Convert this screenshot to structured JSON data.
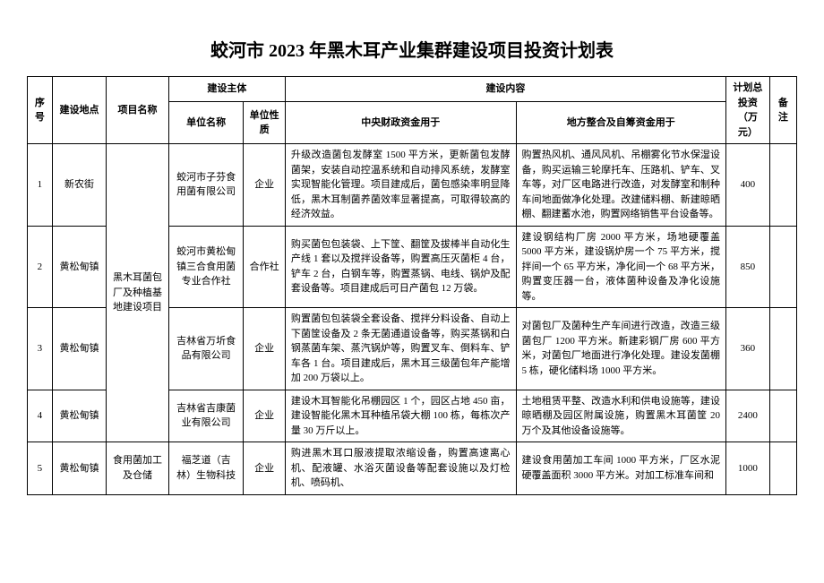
{
  "title": "蛟河市 2023 年黑木耳产业集群建设项目投资计划表",
  "headers": {
    "seq": "序号",
    "location": "建设地点",
    "project": "项目名称",
    "subject_group": "建设主体",
    "content_group": "建设内容",
    "unit_name": "单位名称",
    "unit_nature": "单位性质",
    "central_fund": "中央财政资金用于",
    "local_fund": "地方整合及自筹资金用于",
    "total_invest": "计划总投资（万元）",
    "remark": "备注"
  },
  "project_group_name": "黑木耳菌包厂及种植基地建设项目",
  "rows": [
    {
      "seq": "1",
      "location": "新农街",
      "unit_name": "蛟河市子芬食用菌有限公司",
      "unit_nature": "企业",
      "central": "升级改造菌包发酵室 1500 平方米，更新菌包发酵菌架，安装自动控温系统和自动排风系统，发酵室实现智能化管理。项目建成后，菌包感染率明显降低，黑木耳制菌养菌效率显著提高，可取得较高的经济效益。",
      "local": "购置热风机、通风风机、吊棚雾化节水保湿设备，购买运输三轮摩托车、压路机、铲车、叉车等，对厂区电路进行改造，对发酵室和制种车间地面做净化处理。改建储料棚、新建晾晒棚、翻建蓄水池，购置网络销售平台设备等。",
      "invest": "400"
    },
    {
      "seq": "2",
      "location": "黄松甸镇",
      "unit_name": "蛟河市黄松甸镇三合食用菌专业合作社",
      "unit_nature": "合作社",
      "central": "购买菌包包装袋、上下筐、翻筐及拔棒半自动化生产线 1 套以及搅拌设备等，购置高压灭菌柜 4 台，铲车 2 台，白钢车等，购置蒸锅、电线、锅炉及配套设备等。项目建成后可日产菌包 12 万袋。",
      "local": "建设钢结构厂房 2000 平方米，场地硬覆盖5000 平方米，建设锅炉房一个 75 平方米，搅拌间一个 65 平方米，净化间一个 68 平方米，购置变压器一台，液体菌种设备及净化设施等。",
      "invest": "850"
    },
    {
      "seq": "3",
      "location": "黄松甸镇",
      "unit_name": "吉林省万圻食品有限公司",
      "unit_nature": "企业",
      "central": "购置菌包包装袋全套设备、搅拌分料设备、自动上下菌筐设备及 2 条无菌通道设备等，购买蒸锅和白钢蒸菌车架、蒸汽锅炉等，购置叉车、倒料车、铲车各 1 台。项目建成后，黑木耳三级菌包年产能增加 200 万袋以上。",
      "local": "对菌包厂及菌种生产车间进行改造，改造三级菌包厂 1200 平方米。新建彩钢厂房 600 平方米，对菌包厂地面进行净化处理。建设发菌棚 5 栋，硬化储料场 1000 平方米。",
      "invest": "360"
    },
    {
      "seq": "4",
      "location": "黄松甸镇",
      "unit_name": "吉林省吉康菌业有限公司",
      "unit_nature": "企业",
      "central": "建设木耳智能化吊棚园区 1 个，园区占地 450 亩，建设智能化黑木耳种植吊袋大棚 100 栋，每栋次产量 30 万斤以上。",
      "local": "土地租赁平整、改造水利和供电设施等，建设晾晒棚及园区附属设施，购置黑木耳菌筐 20 万个及其他设备设施等。",
      "invest": "2400"
    },
    {
      "seq": "5",
      "location": "黄松甸镇",
      "unit_name": "福芝道（吉林）生物科技",
      "unit_nature": "企业",
      "central": "购进黑木耳口服液提取浓缩设备，购置高速离心机、配液罐、水浴灭菌设备等配套设施以及灯检机、喷码机、",
      "local": "建设食用菌加工车间 1000 平方米，厂区水泥硬覆盖面积 3000 平方米。对加工标准车间和",
      "invest": "1000"
    }
  ],
  "row5_project": "食用菌加工及仓储"
}
